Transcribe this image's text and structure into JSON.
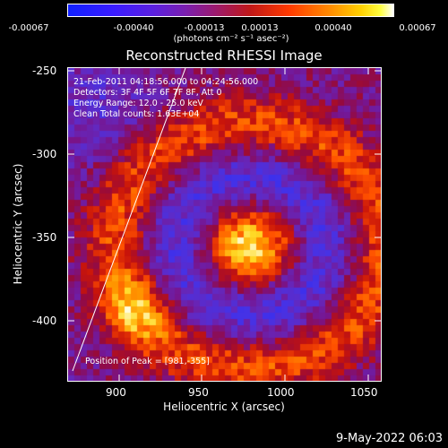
{
  "colorbar": {
    "ticks": [
      "-0.00067",
      "-0.00040",
      "-0.00013",
      "0.00013",
      "0.00040",
      "0.00067"
    ],
    "units": "(photons cm⁻² s⁻¹ asec⁻²)"
  },
  "plot": {
    "title": "Reconstructed RHESSI Image",
    "time_range": "21-Feb-2011 04:18:56.000 to 04:24:56.000",
    "detectors": "Detectors: 3F 4F 5F 6F 7F 8F, Att 0",
    "energy_range": "Energy Range: 12.0 - 25.0 keV",
    "method": "Clean    Total counts: 1.63E+04",
    "peak": "Position of Peak = [981,-355]",
    "xlabel": "Heliocentric X (arcsec)",
    "ylabel": "Heliocentric Y (arcsec)",
    "xticks": [
      "900",
      "950",
      "1000",
      "1050"
    ],
    "yticks": [
      "-250",
      "-300",
      "-350",
      "-400"
    ]
  },
  "footer": {
    "date": "9-May-2022 06:03"
  }
}
